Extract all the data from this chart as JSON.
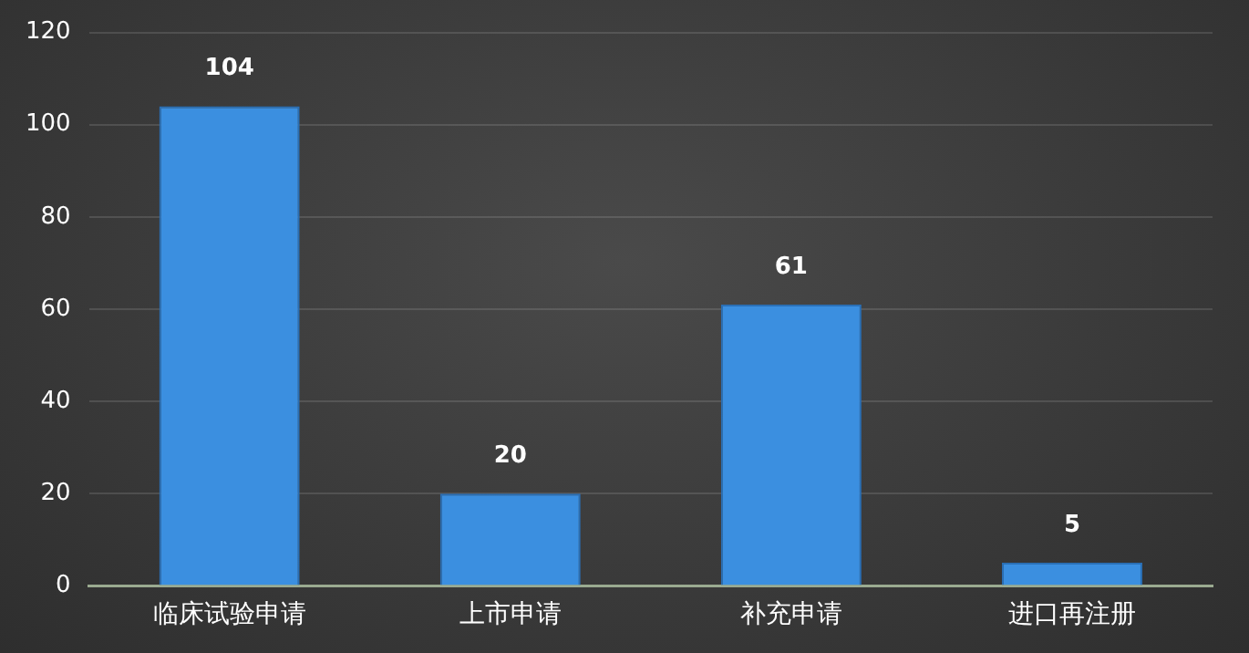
{
  "chart_data": {
    "type": "bar",
    "categories": [
      "临床试验申请",
      "上市申请",
      "补充申请",
      "进口再注册"
    ],
    "values": [
      104,
      20,
      61,
      5
    ],
    "color": "#3b8fe0",
    "ylim": [
      0,
      120
    ],
    "yticks": [
      0,
      20,
      40,
      60,
      80,
      100,
      120
    ],
    "grid": "y",
    "legend": false,
    "data_labels": true
  }
}
